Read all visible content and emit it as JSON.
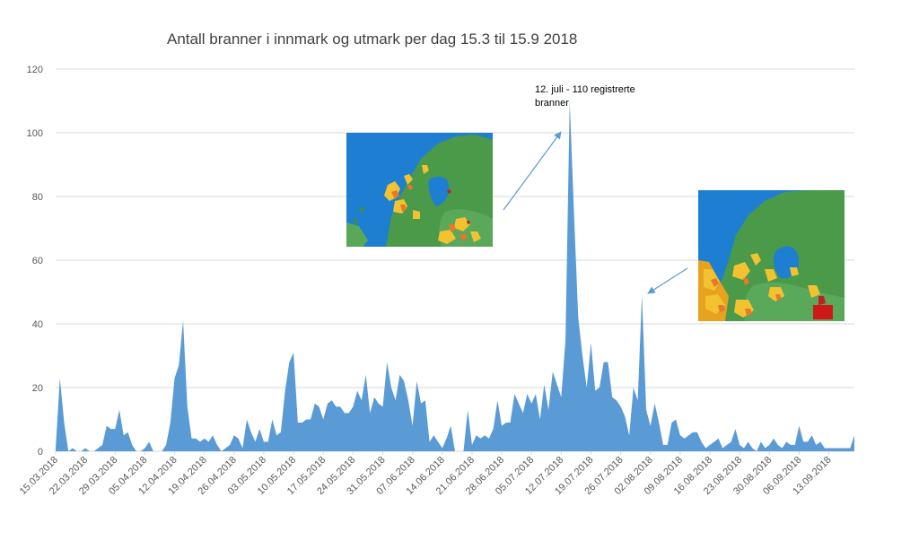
{
  "chart_data": {
    "type": "area",
    "title": "Antall branner i innmark og utmark per dag 15.3 til 15.9 2018",
    "xlabel": "",
    "ylabel": "",
    "ylim": [
      0,
      120
    ],
    "yticks": [
      0,
      20,
      40,
      60,
      80,
      100,
      120
    ],
    "grid": true,
    "legend": "none",
    "colors": {
      "area": "#5b9bd5",
      "grid": "#d9d9d9",
      "axis": "#d9d9d9",
      "arrow": "#5b9bd5"
    },
    "x_tick_labels": [
      "15.03.2018",
      "22.03.2018",
      "29.03.2018",
      "05.04.2018",
      "12.04.2018",
      "19.04.2018",
      "26.04.2018",
      "03.05.2018",
      "10.05.2018",
      "17.05.2018",
      "24.05.2018",
      "31.05.2018",
      "07.06.2018",
      "14.06.2018",
      "21.06.2018",
      "28.06.2018",
      "05.07.2018",
      "12.07.2018",
      "19.07.2018",
      "26.07.2018",
      "02.08.2018",
      "09.08.2018",
      "16.08.2018",
      "23.08.2018",
      "30.08.2018",
      "06.09.2018",
      "13.09.2018"
    ],
    "series": [
      {
        "name": "",
        "values": [
          1,
          23,
          9,
          0,
          1,
          0,
          0,
          1,
          0,
          0,
          1,
          2,
          8,
          7,
          7,
          13,
          5,
          6,
          2,
          0,
          0,
          1,
          3,
          0,
          0,
          0,
          2,
          9,
          23,
          27,
          41,
          14,
          4,
          4,
          3,
          4,
          3,
          5,
          2,
          0,
          1,
          2,
          5,
          4,
          1,
          10,
          6,
          3,
          7,
          3,
          3,
          10,
          5,
          6,
          19,
          28,
          31,
          9,
          9,
          10,
          10,
          15,
          14,
          10,
          15,
          16,
          14,
          14,
          12,
          12,
          14,
          19,
          16,
          24,
          12,
          17,
          15,
          14,
          28,
          20,
          16,
          24,
          22,
          16,
          8,
          22,
          15,
          16,
          3,
          5,
          3,
          1,
          4,
          8,
          0,
          0,
          0,
          13,
          2,
          5,
          4,
          5,
          4,
          7,
          16,
          8,
          9,
          9,
          18,
          15,
          12,
          18,
          15,
          18,
          10,
          21,
          13,
          25,
          21,
          17,
          35,
          110,
          75,
          42,
          30,
          20,
          34,
          19,
          20,
          28,
          28,
          17,
          16,
          14,
          11,
          5,
          20,
          16,
          49,
          13,
          8,
          15,
          9,
          2,
          2,
          9,
          10,
          5,
          4,
          5,
          6,
          6,
          3,
          1,
          2,
          3,
          4,
          1,
          2,
          3,
          7,
          2,
          1,
          3,
          1,
          0,
          3,
          1,
          2,
          4,
          2,
          1,
          3,
          2,
          2,
          8,
          3,
          3,
          5,
          2,
          3,
          1,
          1,
          1,
          1,
          1,
          1,
          1,
          5
        ]
      }
    ],
    "annotations": [
      {
        "lines": [
          "12. juli - 110 registrerte",
          "branner"
        ]
      }
    ]
  }
}
